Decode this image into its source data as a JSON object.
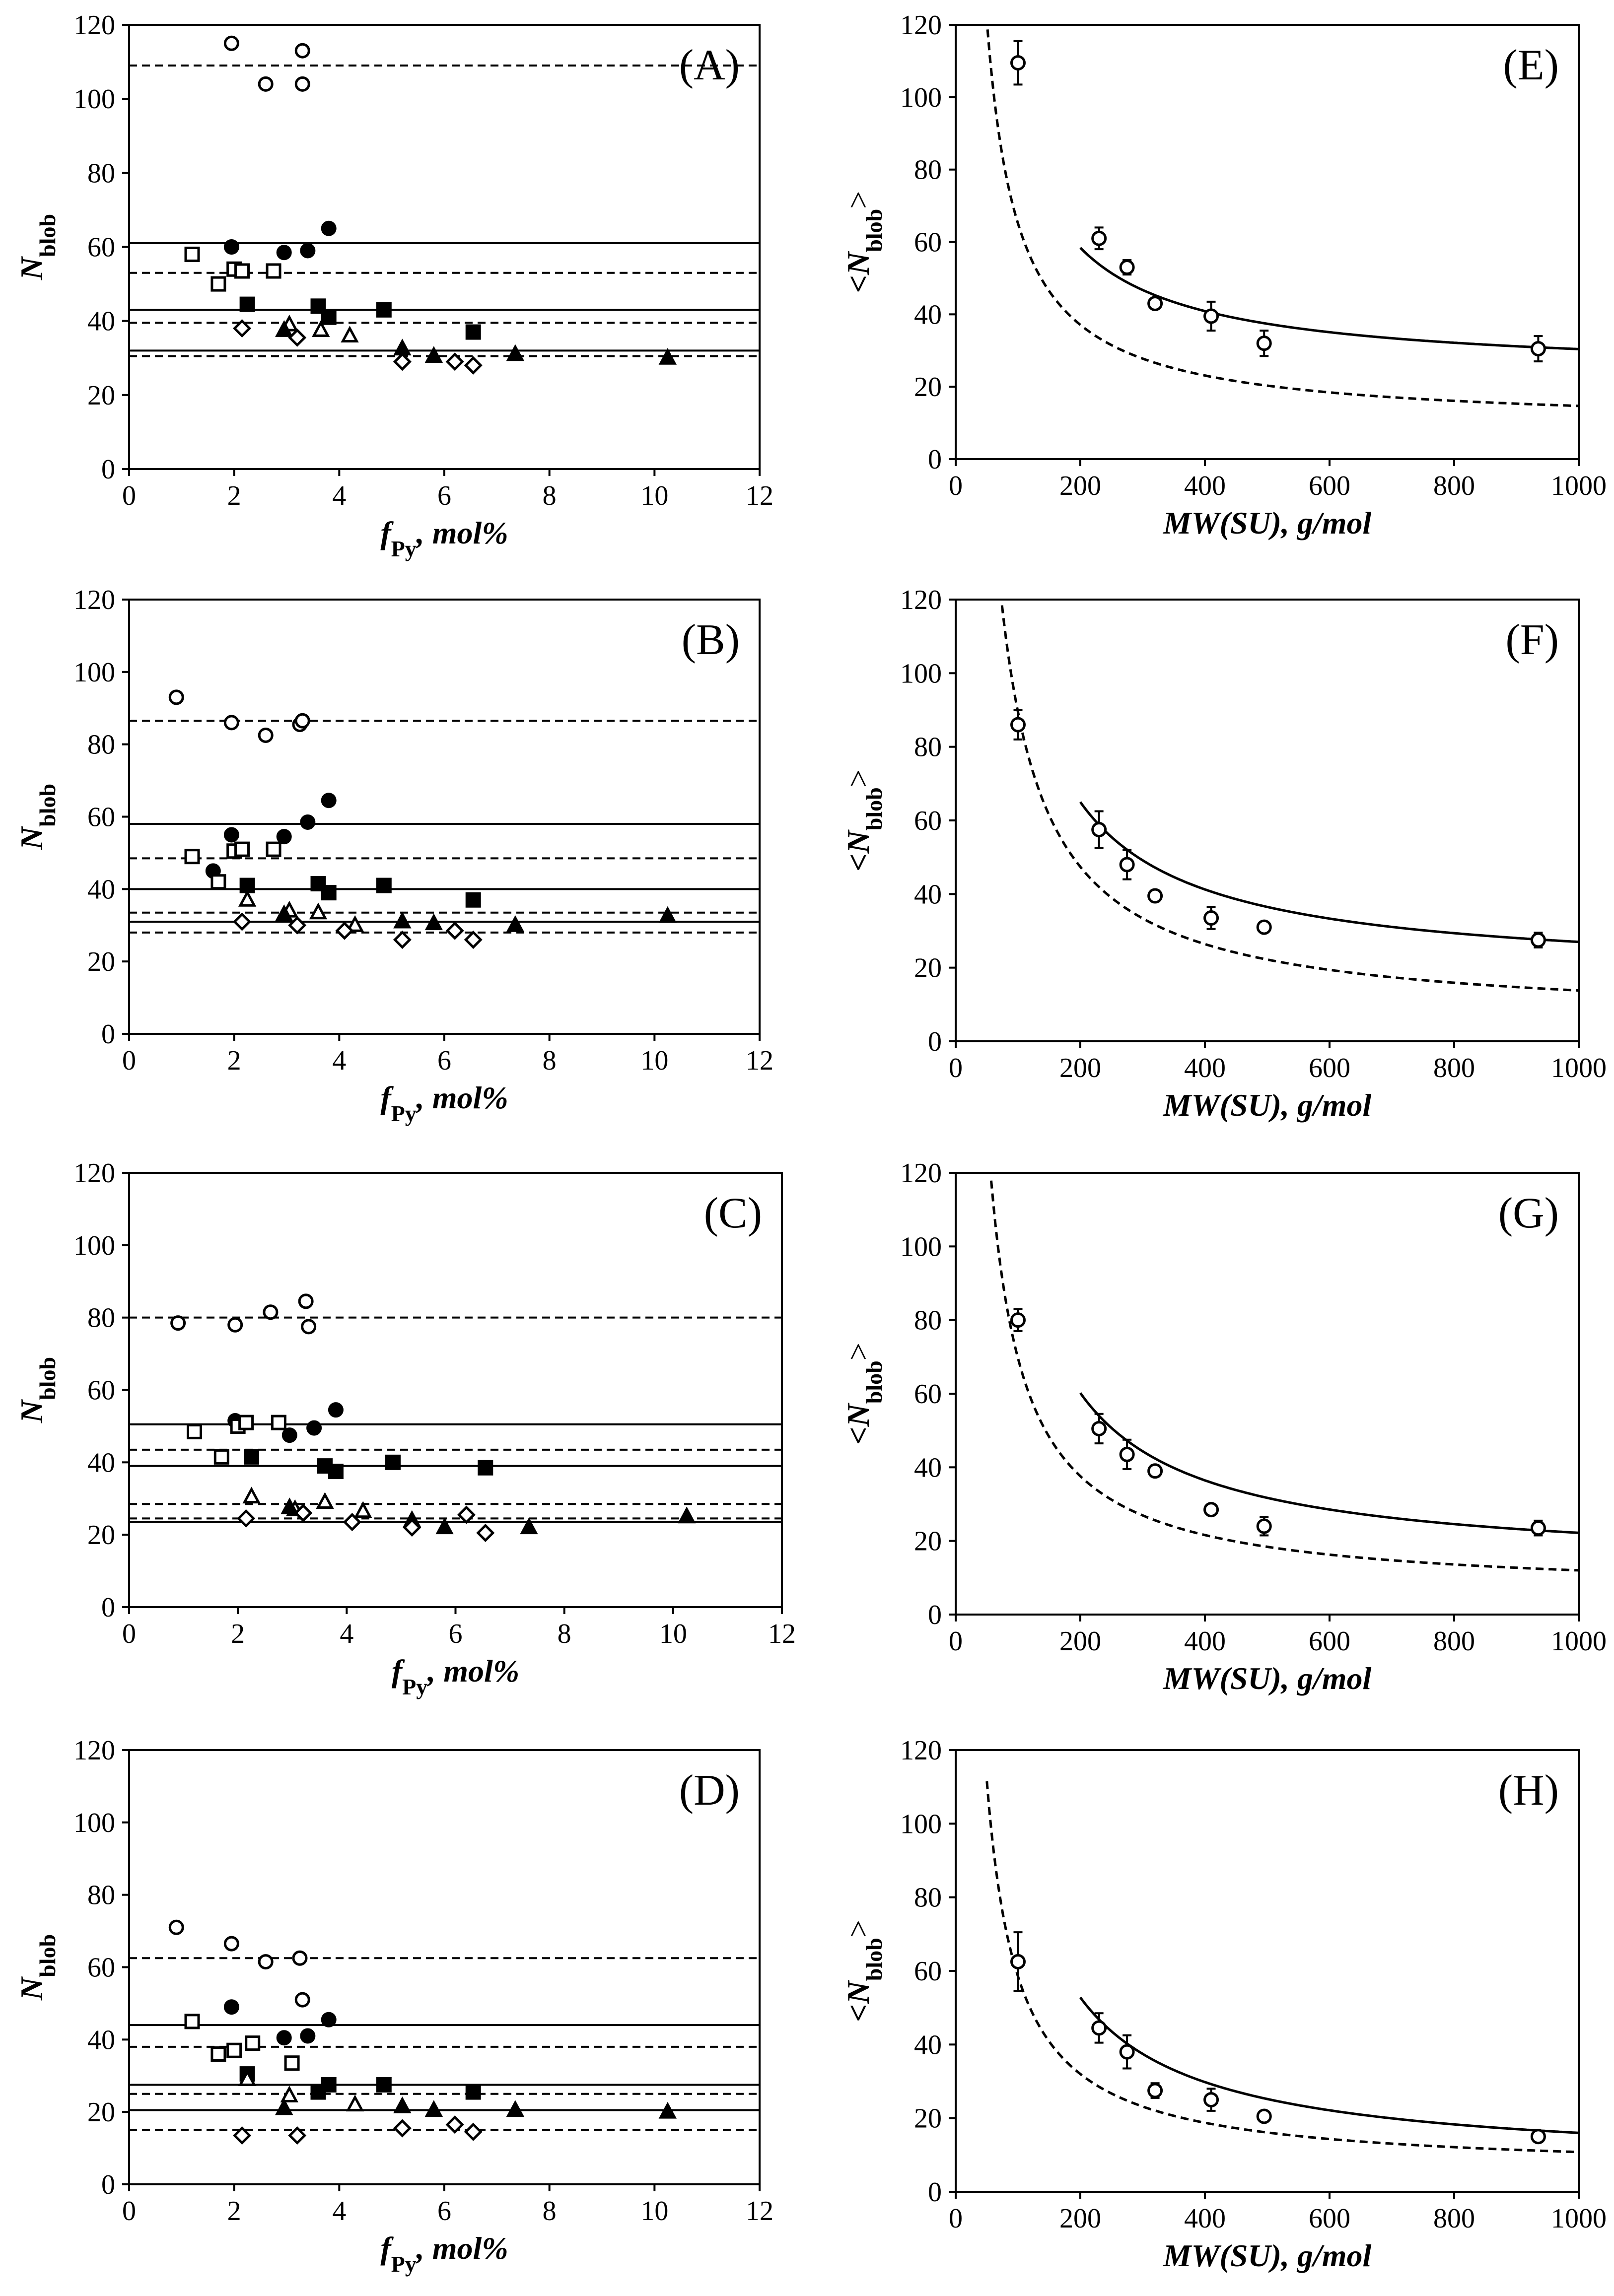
{
  "figure": {
    "title": ""
  },
  "chart_data": [
    {
      "id": "A",
      "type": "scatter",
      "panel_label": "(A)",
      "ylabel": "N",
      "ylabel_sub": "blob",
      "xlabel_italic": "f",
      "xlabel_sub": "Py",
      "xlabel_suffix": ", mol%",
      "xlim": [
        0,
        12
      ],
      "ylim": [
        0,
        120
      ],
      "xticks": [
        0,
        2,
        4,
        6,
        8,
        10,
        12
      ],
      "yticks": [
        0,
        20,
        40,
        60,
        80,
        100,
        120
      ],
      "hlines": [
        {
          "y": 109,
          "style": "dashed"
        },
        {
          "y": 61,
          "style": "solid"
        },
        {
          "y": 53,
          "style": "dashed"
        },
        {
          "y": 43,
          "style": "solid"
        },
        {
          "y": 39.5,
          "style": "dashed"
        },
        {
          "y": 32,
          "style": "solid"
        },
        {
          "y": 30.5,
          "style": "dashed"
        }
      ],
      "series": [
        {
          "name": "open circle",
          "marker": "circle",
          "filled": false,
          "x": [
            1.95,
            2.6,
            3.3,
            3.3
          ],
          "y": [
            115,
            104,
            113,
            104
          ]
        },
        {
          "name": "filled circle",
          "marker": "circle",
          "filled": true,
          "x": [
            1.95,
            2.95,
            3.4,
            3.8
          ],
          "y": [
            60,
            58.5,
            59,
            65
          ]
        },
        {
          "name": "open square",
          "marker": "square",
          "filled": false,
          "x": [
            1.2,
            1.7,
            2.0,
            2.15,
            2.75
          ],
          "y": [
            58,
            50,
            54,
            53.5,
            53.5
          ]
        },
        {
          "name": "filled square",
          "marker": "square",
          "filled": true,
          "x": [
            2.25,
            3.6,
            3.8,
            4.85,
            6.55
          ],
          "y": [
            44.5,
            44,
            41,
            43,
            37
          ]
        },
        {
          "name": "open triangle",
          "marker": "triangle",
          "filled": false,
          "x": [
            3.05,
            3.65,
            4.2
          ],
          "y": [
            39,
            37.5,
            36
          ]
        },
        {
          "name": "filled triangle",
          "marker": "triangle",
          "filled": true,
          "x": [
            2.95,
            5.2,
            5.8,
            7.35,
            10.25
          ],
          "y": [
            37.5,
            32.5,
            30.5,
            31,
            30
          ]
        },
        {
          "name": "open diamond",
          "marker": "diamond",
          "filled": false,
          "x": [
            2.15,
            3.2,
            5.2,
            6.2,
            6.55
          ],
          "y": [
            38,
            35.5,
            29,
            29,
            28
          ]
        }
      ]
    },
    {
      "id": "B",
      "type": "scatter",
      "panel_label": "(B)",
      "ylabel": "N",
      "ylabel_sub": "blob",
      "xlabel_italic": "f",
      "xlabel_sub": "Py",
      "xlabel_suffix": ", mol%",
      "xlim": [
        0,
        12
      ],
      "ylim": [
        0,
        120
      ],
      "xticks": [
        0,
        2,
        4,
        6,
        8,
        10,
        12
      ],
      "yticks": [
        0,
        20,
        40,
        60,
        80,
        100,
        120
      ],
      "hlines": [
        {
          "y": 86.5,
          "style": "dashed"
        },
        {
          "y": 58,
          "style": "solid"
        },
        {
          "y": 48.5,
          "style": "dashed"
        },
        {
          "y": 40,
          "style": "solid"
        },
        {
          "y": 33.5,
          "style": "dashed"
        },
        {
          "y": 31,
          "style": "solid"
        },
        {
          "y": 28,
          "style": "dashed"
        }
      ],
      "series": [
        {
          "name": "open circle",
          "marker": "circle",
          "filled": false,
          "x": [
            0.9,
            1.95,
            2.6,
            3.25,
            3.3
          ],
          "y": [
            93,
            86,
            82.5,
            85.5,
            86.5
          ]
        },
        {
          "name": "filled circle",
          "marker": "circle",
          "filled": true,
          "x": [
            1.6,
            1.95,
            2.95,
            3.4,
            3.8
          ],
          "y": [
            45,
            55,
            54.5,
            58.5,
            64.5
          ]
        },
        {
          "name": "open square",
          "marker": "square",
          "filled": false,
          "x": [
            1.2,
            1.7,
            2.0,
            2.15,
            2.75
          ],
          "y": [
            49,
            42,
            50.5,
            51,
            51
          ]
        },
        {
          "name": "filled square",
          "marker": "square",
          "filled": true,
          "x": [
            2.25,
            3.6,
            3.8,
            4.85,
            6.55
          ],
          "y": [
            41,
            41.5,
            39,
            41,
            37
          ]
        },
        {
          "name": "open triangle",
          "marker": "triangle",
          "filled": false,
          "x": [
            2.25,
            3.05,
            3.6,
            4.3
          ],
          "y": [
            37,
            34,
            33.5,
            30
          ]
        },
        {
          "name": "filled triangle",
          "marker": "triangle",
          "filled": true,
          "x": [
            2.95,
            5.2,
            5.8,
            7.35,
            10.25
          ],
          "y": [
            33,
            31,
            30.5,
            30,
            32.5
          ]
        },
        {
          "name": "open diamond",
          "marker": "diamond",
          "filled": false,
          "x": [
            2.15,
            3.2,
            4.1,
            5.2,
            6.2,
            6.55
          ],
          "y": [
            31,
            30,
            28.5,
            26,
            28.5,
            26
          ]
        }
      ]
    },
    {
      "id": "C",
      "type": "scatter",
      "panel_label": "(C)",
      "ylabel": "N",
      "ylabel_sub": "blob",
      "xlabel_italic": "f",
      "xlabel_sub": "Py",
      "xlabel_suffix": ", mol%",
      "xlim": [
        0,
        12
      ],
      "ylim": [
        0,
        120
      ],
      "xticks": [
        0,
        2,
        4,
        6,
        8,
        10,
        12
      ],
      "yticks": [
        0,
        20,
        40,
        60,
        80,
        100,
        120
      ],
      "hlines": [
        {
          "y": 80,
          "style": "dashed"
        },
        {
          "y": 50.5,
          "style": "solid"
        },
        {
          "y": 43.5,
          "style": "dashed"
        },
        {
          "y": 39,
          "style": "solid"
        },
        {
          "y": 28.5,
          "style": "dashed"
        },
        {
          "y": 24.5,
          "style": "dashed"
        },
        {
          "y": 23.5,
          "style": "solid"
        }
      ],
      "series": [
        {
          "name": "open circle",
          "marker": "circle",
          "filled": false,
          "x": [
            0.9,
            1.95,
            2.6,
            3.25,
            3.3
          ],
          "y": [
            78.5,
            78,
            81.5,
            84.5,
            77.5
          ]
        },
        {
          "name": "filled circle",
          "marker": "circle",
          "filled": true,
          "x": [
            1.95,
            2.95,
            3.4,
            3.8
          ],
          "y": [
            51.5,
            47.5,
            49.5,
            54.5
          ]
        },
        {
          "name": "open square",
          "marker": "square",
          "filled": false,
          "x": [
            1.2,
            1.7,
            2.0,
            2.15,
            2.75
          ],
          "y": [
            48.5,
            41.5,
            50,
            51,
            51
          ]
        },
        {
          "name": "filled square",
          "marker": "square",
          "filled": true,
          "x": [
            2.25,
            3.6,
            3.8,
            4.85,
            6.55
          ],
          "y": [
            41.5,
            39,
            37.5,
            40,
            38.5
          ]
        },
        {
          "name": "open triangle",
          "marker": "triangle",
          "filled": false,
          "x": [
            2.25,
            3.05,
            3.6,
            4.3
          ],
          "y": [
            30.5,
            27,
            29,
            26.5
          ]
        },
        {
          "name": "filled triangle",
          "marker": "triangle",
          "filled": true,
          "x": [
            2.95,
            5.2,
            5.8,
            7.35,
            10.25
          ],
          "y": [
            27.5,
            24,
            22,
            22,
            25
          ]
        },
        {
          "name": "open diamond",
          "marker": "diamond",
          "filled": false,
          "x": [
            2.15,
            3.2,
            4.1,
            5.2,
            6.2,
            6.55
          ],
          "y": [
            24.5,
            26,
            23.5,
            22,
            25.5,
            20.5
          ]
        }
      ]
    },
    {
      "id": "D",
      "type": "scatter",
      "panel_label": "(D)",
      "ylabel": "N",
      "ylabel_sub": "blob",
      "xlabel_italic": "f",
      "xlabel_sub": "Py",
      "xlabel_suffix": ", mol%",
      "xlim": [
        0,
        12
      ],
      "ylim": [
        0,
        120
      ],
      "xticks": [
        0,
        2,
        4,
        6,
        8,
        10,
        12
      ],
      "yticks": [
        0,
        20,
        40,
        60,
        80,
        100,
        120
      ],
      "hlines": [
        {
          "y": 62.5,
          "style": "dashed"
        },
        {
          "y": 44,
          "style": "solid"
        },
        {
          "y": 38,
          "style": "dashed"
        },
        {
          "y": 27.5,
          "style": "solid"
        },
        {
          "y": 25,
          "style": "dashed"
        },
        {
          "y": 20.5,
          "style": "solid"
        },
        {
          "y": 15,
          "style": "dashed"
        }
      ],
      "series": [
        {
          "name": "open circle",
          "marker": "circle",
          "filled": false,
          "x": [
            0.9,
            1.95,
            2.6,
            3.25,
            3.3
          ],
          "y": [
            71,
            66.5,
            61.5,
            62.5,
            51
          ]
        },
        {
          "name": "filled circle",
          "marker": "circle",
          "filled": true,
          "x": [
            1.95,
            2.95,
            3.4,
            3.8
          ],
          "y": [
            49,
            40.5,
            41,
            45.5
          ]
        },
        {
          "name": "open square",
          "marker": "square",
          "filled": false,
          "x": [
            1.2,
            1.7,
            2.0,
            2.35,
            3.1
          ],
          "y": [
            45,
            36,
            37,
            39,
            33.5
          ]
        },
        {
          "name": "filled square",
          "marker": "square",
          "filled": true,
          "x": [
            2.25,
            3.6,
            3.8,
            4.85,
            6.55
          ],
          "y": [
            30.5,
            25.5,
            27.5,
            27.5,
            25.5
          ]
        },
        {
          "name": "open triangle",
          "marker": "triangle",
          "filled": false,
          "x": [
            2.25,
            3.05,
            4.3
          ],
          "y": [
            29,
            24.5,
            22
          ]
        },
        {
          "name": "filled triangle",
          "marker": "triangle",
          "filled": true,
          "x": [
            2.95,
            5.2,
            5.8,
            7.35,
            10.25
          ],
          "y": [
            21,
            21.5,
            20.5,
            20.5,
            20
          ]
        },
        {
          "name": "open diamond",
          "marker": "diamond",
          "filled": false,
          "x": [
            2.15,
            3.2,
            5.2,
            6.2,
            6.55
          ],
          "y": [
            13.5,
            13.5,
            15.5,
            16.5,
            14.5
          ]
        }
      ]
    },
    {
      "id": "E",
      "type": "scatter",
      "panel_label": "(E)",
      "ylabel": "<N",
      "ylabel_sub": "blob",
      "ylabel_suffix": ">",
      "xlabel": "MW(SU), g/mol",
      "xlim": [
        0,
        1000
      ],
      "ylim": [
        0,
        120
      ],
      "xticks": [
        0,
        200,
        400,
        600,
        800,
        1000
      ],
      "yticks": [
        0,
        20,
        40,
        60,
        80,
        100,
        120
      ],
      "series": [
        {
          "name": "average N_blob",
          "marker": "circle",
          "filled": false,
          "x": [
            100,
            230,
            275,
            320,
            410,
            495,
            935
          ],
          "y": [
            109.5,
            61,
            53,
            43,
            39.5,
            32,
            30.5
          ],
          "yerr": [
            6,
            3,
            2,
            1.5,
            4,
            3.5,
            3.5
          ]
        }
      ],
      "curves": [
        {
          "style": "solid",
          "A": 7000,
          "B": 23.4,
          "x0": 200
        },
        {
          "style": "dashed",
          "A": 5600,
          "B": 9.1,
          "x0": 40
        }
      ]
    },
    {
      "id": "F",
      "type": "scatter",
      "panel_label": "(F)",
      "ylabel": "<N",
      "ylabel_sub": "blob",
      "ylabel_suffix": ">",
      "xlabel": "MW(SU), g/mol",
      "xlim": [
        0,
        1000
      ],
      "ylim": [
        0,
        120
      ],
      "xticks": [
        0,
        200,
        400,
        600,
        800,
        1000
      ],
      "yticks": [
        0,
        20,
        40,
        60,
        80,
        100,
        120
      ],
      "series": [
        {
          "name": "average N_blob",
          "marker": "circle",
          "filled": false,
          "x": [
            100,
            230,
            275,
            320,
            410,
            495,
            935
          ],
          "y": [
            86,
            57.5,
            48,
            39.5,
            33.5,
            31,
            27.5
          ],
          "yerr": [
            4,
            5,
            4,
            1.5,
            3,
            1,
            2
          ]
        }
      ],
      "curves": [
        {
          "style": "solid",
          "A": 9500,
          "B": 17.5,
          "x0": 200
        },
        {
          "style": "dashed",
          "A": 8400,
          "B": 5.4,
          "x0": 70
        }
      ]
    },
    {
      "id": "G",
      "type": "scatter",
      "panel_label": "(G)",
      "ylabel": "<N",
      "ylabel_sub": "blob",
      "ylabel_suffix": ">",
      "xlabel": "MW(SU), g/mol",
      "xlim": [
        0,
        1000
      ],
      "ylim": [
        0,
        120
      ],
      "xticks": [
        0,
        200,
        400,
        600,
        800,
        1000
      ],
      "yticks": [
        0,
        20,
        40,
        60,
        80,
        100,
        120
      ],
      "series": [
        {
          "name": "average N_blob",
          "marker": "circle",
          "filled": false,
          "x": [
            100,
            230,
            275,
            320,
            410,
            495,
            935
          ],
          "y": [
            80,
            50.5,
            43.5,
            39,
            28.5,
            24,
            23.5
          ],
          "yerr": [
            3,
            4,
            4,
            1.5,
            1.5,
            2.5,
            2
          ]
        }
      ],
      "curves": [
        {
          "style": "solid",
          "A": 9500,
          "B": 12.7,
          "x0": 200
        },
        {
          "style": "dashed",
          "A": 6400,
          "B": 5.6,
          "x0": 57
        }
      ]
    },
    {
      "id": "H",
      "type": "scatter",
      "panel_label": "(H)",
      "ylabel": "<N",
      "ylabel_sub": "blob",
      "ylabel_suffix": ">",
      "xlabel": "MW(SU), g/mol",
      "xlim": [
        0,
        1000
      ],
      "ylim": [
        0,
        120
      ],
      "xticks": [
        0,
        200,
        400,
        600,
        800,
        1000
      ],
      "yticks": [
        0,
        20,
        40,
        60,
        80,
        100,
        120
      ],
      "series": [
        {
          "name": "average N_blob",
          "marker": "circle",
          "filled": false,
          "x": [
            100,
            230,
            275,
            320,
            410,
            495,
            935
          ],
          "y": [
            62.5,
            44.5,
            38,
            27.5,
            25,
            20.5,
            15
          ],
          "yerr": [
            8,
            4,
            4.5,
            2,
            3,
            1,
            1.5
          ]
        }
      ],
      "curves": [
        {
          "style": "solid",
          "A": 9200,
          "B": 6.8,
          "x0": 200
        },
        {
          "style": "dashed",
          "A": 5300,
          "B": 5.5,
          "x0": 50
        }
      ]
    }
  ]
}
